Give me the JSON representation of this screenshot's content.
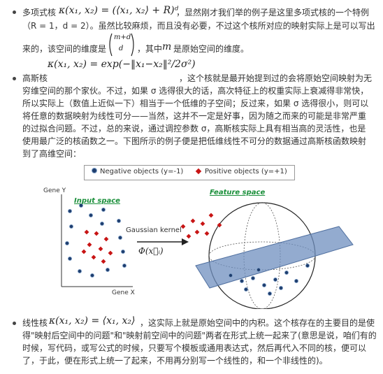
{
  "poly": {
    "label": "多项式核",
    "formula": "κ(x₁, x₂) = (⟨x₁, x₂⟩ + R)ᵈ",
    "line1_rest": "，显然刚才我们举的例子是这里多项式核的一个特例",
    "line2": "（R = 1，d = 2）。虽然比较麻烦，而且没有必要，不过这个核所对应的映射实际上是可以写出",
    "line3a": "来的，该空间的维度是",
    "binom_top": "m+d",
    "binom_bottom": "d",
    "line3b": "，其中",
    "m": "m",
    "line3c": "是原始空间的维度。"
  },
  "gauss": {
    "label": "高斯核",
    "formula": "κ(x₁, x₂) = exp(−‖x₁−x₂‖²/2σ²)",
    "line1_rest": "，这个核就是最开始提到过的会将原始空间映射为无",
    "lines": [
      "穷维空间的那个家伙。不过，如果 σ 选得很大的话，高次特征上的权重实际上衰减得非常快，",
      "所以实际上（数值上近似一下）相当于一个低维的子空间；反过来，如果 σ 选得很小，则可以",
      "将任意的数据映射为线性可分——当然，这并不一定是好事，因为随之而来的可能是非常严重",
      "的过拟合问题。不过，总的来说，通过调控参数 σ，高斯核实际上具有相当高的灵活性，也是",
      "使用最广泛的核函数之一。下图所示的例子便是把低维线性不可分的数据通过高斯核函数映射",
      "到了高维空间："
    ]
  },
  "figure": {
    "legend_negative": "Negative objects (y=-1)",
    "legend_positive": "Positive objects (y=+1)",
    "gene_y": "Gene Y",
    "gene_x": "Gene X",
    "input_space": "Input space",
    "feature_space": "Feature space",
    "kernel_label": "Gaussian kernel",
    "phi_label": "Φ(x⃗ᵢ)",
    "colors": {
      "negative": "#1f3e6e",
      "positive": "#c81414",
      "title": "#1a8f3a",
      "plane": "#6f8fbf"
    }
  },
  "linear": {
    "label": "线性核",
    "formula": "κ(x₁, x₂) = ⟨x₁, x₂⟩",
    "line1_rest": "，这实际上就是原始空间中的内积。这个核存在的主要目的是使",
    "lines": [
      "得\"映射后空间中的问题\"和\"映射前空间中的问题\"两者在形式上统一起来了(意思是说，咱们有的",
      "时候，写代码，或写公式的时候，只要写个模板或通用表达式，然后再代入不同的核，便可以",
      "了，于此，便在形式上统一了起来，不用再分别写一个线性的，和一个非线性的)。"
    ]
  }
}
